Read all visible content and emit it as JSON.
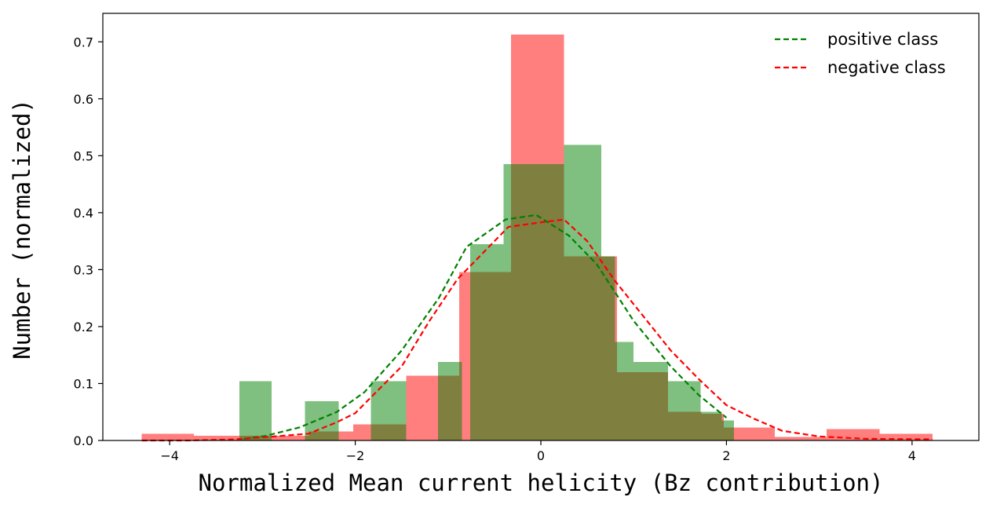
{
  "chart_data": {
    "type": "bar",
    "subtype": "overlaid histogram with density curves",
    "xlabel": "Normalized Mean current helicity (Bz contribution)",
    "ylabel": "Number (normalized)",
    "xlim": [
      -4.72,
      4.72
    ],
    "ylim": [
      0,
      0.75
    ],
    "x_ticks": [
      -4,
      -2,
      0,
      2,
      4
    ],
    "x_tick_labels": [
      "−4",
      "−2",
      "0",
      "2",
      "4"
    ],
    "y_ticks": [
      0.0,
      0.1,
      0.2,
      0.3,
      0.4,
      0.5,
      0.6,
      0.7
    ],
    "y_tick_labels": [
      "0.0",
      "0.1",
      "0.2",
      "0.3",
      "0.4",
      "0.5",
      "0.6",
      "0.7"
    ],
    "legend_position": "top-right",
    "colors": {
      "positive": "#008000",
      "negative": "#ff0000",
      "positive_fill": "rgba(0,128,0,0.5)",
      "negative_fill": "rgba(255,0,0,0.5)"
    },
    "histograms": [
      {
        "series": "positive",
        "bins": [
          [
            -3.25,
            -2.9,
            0.104
          ],
          [
            -2.54,
            -2.18,
            0.069
          ],
          [
            -1.83,
            -1.45,
            0.104
          ],
          [
            -1.11,
            -0.85,
            0.138
          ],
          [
            -0.76,
            -0.4,
            0.345
          ],
          [
            -0.4,
            0.25,
            0.485
          ],
          [
            0.25,
            0.65,
            0.519
          ],
          [
            0.65,
            0.8,
            0.323
          ],
          [
            0.8,
            1.0,
            0.173
          ],
          [
            1.0,
            1.37,
            0.138
          ],
          [
            1.37,
            1.72,
            0.104
          ],
          [
            1.72,
            1.95,
            0.05
          ],
          [
            1.95,
            2.08,
            0.035
          ]
        ]
      },
      {
        "series": "negative",
        "bins": [
          [
            -4.3,
            -3.74,
            0.012
          ],
          [
            -3.74,
            -3.27,
            0.008
          ],
          [
            -3.27,
            -2.77,
            0.008
          ],
          [
            -2.77,
            -2.5,
            0.008
          ],
          [
            -2.5,
            -2.2,
            0.016
          ],
          [
            -2.2,
            -2.02,
            0.016
          ],
          [
            -2.02,
            -1.83,
            0.028
          ],
          [
            -1.83,
            -1.45,
            0.028
          ],
          [
            -1.45,
            -1.12,
            0.114
          ],
          [
            -1.12,
            -0.88,
            0.114
          ],
          [
            -0.88,
            -0.75,
            0.296
          ],
          [
            -0.75,
            -0.32,
            0.296
          ],
          [
            -0.32,
            0.25,
            0.713
          ],
          [
            0.25,
            0.65,
            0.323
          ],
          [
            0.65,
            0.82,
            0.323
          ],
          [
            0.82,
            1.37,
            0.12
          ],
          [
            1.37,
            1.73,
            0.05
          ],
          [
            1.73,
            1.97,
            0.047
          ],
          [
            1.97,
            2.08,
            0.023
          ],
          [
            2.08,
            2.52,
            0.023
          ],
          [
            2.52,
            3.08,
            0.006
          ],
          [
            3.08,
            3.65,
            0.02
          ],
          [
            3.65,
            4.22,
            0.012
          ]
        ]
      }
    ],
    "series": [
      {
        "name": "positive class",
        "key": "positive",
        "style": "dashed",
        "x": [
          -3.2,
          -2.97,
          -2.6,
          -2.2,
          -1.9,
          -1.5,
          -1.1,
          -0.8,
          -0.38,
          -0.05,
          0.3,
          0.6,
          1.0,
          1.4,
          1.7,
          2.0
        ],
        "y": [
          0.003,
          0.008,
          0.023,
          0.05,
          0.085,
          0.158,
          0.25,
          0.34,
          0.388,
          0.396,
          0.36,
          0.31,
          0.21,
          0.13,
          0.08,
          0.04
        ]
      },
      {
        "name": "negative class",
        "key": "negative",
        "style": "dashed",
        "x": [
          -4.3,
          -3.8,
          -3.3,
          -2.8,
          -2.5,
          -2.2,
          -2.0,
          -1.5,
          -1.2,
          -0.9,
          -0.35,
          0.0,
          0.25,
          0.5,
          0.8,
          1.4,
          1.7,
          2.0,
          2.3,
          2.6,
          3.0,
          3.5,
          4.22
        ],
        "y": [
          0.0,
          0.0,
          0.002,
          0.008,
          0.012,
          0.032,
          0.048,
          0.13,
          0.21,
          0.283,
          0.375,
          0.383,
          0.388,
          0.35,
          0.28,
          0.158,
          0.108,
          0.062,
          0.038,
          0.017,
          0.007,
          0.003,
          0.002
        ]
      }
    ]
  }
}
